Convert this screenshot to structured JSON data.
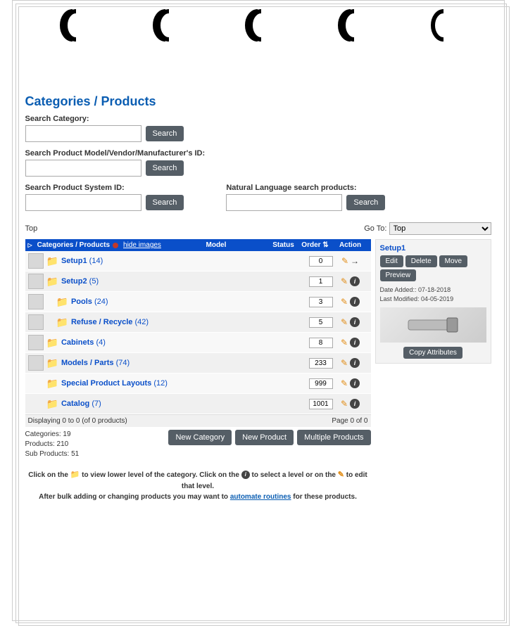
{
  "page": {
    "title": "Categories / Products"
  },
  "search": {
    "category_label": "Search Category:",
    "model_label": "Search Product Model/Vendor/Manufacturer's ID:",
    "system_label": "Search Product System ID:",
    "nl_label": "Natural Language search products:",
    "button": "Search"
  },
  "breadcrumb": {
    "path": "Top",
    "goto_label": "Go To:",
    "goto_value": "Top"
  },
  "table": {
    "header": {
      "cat": "Categories / Products",
      "hide_images": "hide images",
      "model": "Model",
      "status": "Status",
      "order": "Order",
      "action": "Action"
    },
    "rows": [
      {
        "name": "Setup1",
        "count": "(14)",
        "order": "0",
        "thumb": true,
        "indent": 0,
        "arrow": true
      },
      {
        "name": "Setup2",
        "count": "(5)",
        "order": "1",
        "thumb": true,
        "indent": 0,
        "arrow": false
      },
      {
        "name": "Pools",
        "count": "(24)",
        "order": "3",
        "thumb": true,
        "indent": 1,
        "arrow": false
      },
      {
        "name": "Refuse / Recycle",
        "count": "(42)",
        "order": "5",
        "thumb": true,
        "indent": 1,
        "arrow": false
      },
      {
        "name": "Cabinets",
        "count": "(4)",
        "order": "8",
        "thumb": true,
        "indent": 0,
        "arrow": false
      },
      {
        "name": "Models / Parts",
        "count": "(74)",
        "order": "233",
        "thumb": true,
        "indent": 0,
        "arrow": false
      },
      {
        "name": "Special Product Layouts",
        "count": "(12)",
        "order": "999",
        "thumb": false,
        "indent": 0,
        "arrow": false
      },
      {
        "name": "Catalog",
        "count": "(7)",
        "order": "1001",
        "thumb": false,
        "indent": 0,
        "arrow": false
      }
    ],
    "footer_left": "Displaying 0 to 0 (of 0 products)",
    "footer_right": "Page 0 of 0"
  },
  "summary": {
    "categories": "Categories: 19",
    "products": "Products: 210",
    "sub": "Sub Products:  51",
    "buttons": {
      "new_category": "New Category",
      "new_product": "New Product",
      "multiple": "Multiple Products"
    }
  },
  "help": {
    "line1a": "Click on the ",
    "line1b": " to view lower level of the category. Click on the ",
    "line1c": " to select a level or on the ",
    "line1d": " to edit that level.",
    "line2a": "After bulk adding or changing products you may want to ",
    "line2_link": "automate routines",
    "line2b": " for these products."
  },
  "side": {
    "title": "Setup1",
    "buttons": {
      "edit": "Edit",
      "delete": "Delete",
      "move": "Move",
      "preview": "Preview"
    },
    "date_added": "Date Added:: 07-18-2018",
    "last_modified": "Last Modified: 04-05-2019",
    "copy": "Copy Attributes"
  },
  "colors": {
    "primary": "#0a4fc9",
    "link": "#0a5db2",
    "btn_bg": "#555e66"
  }
}
